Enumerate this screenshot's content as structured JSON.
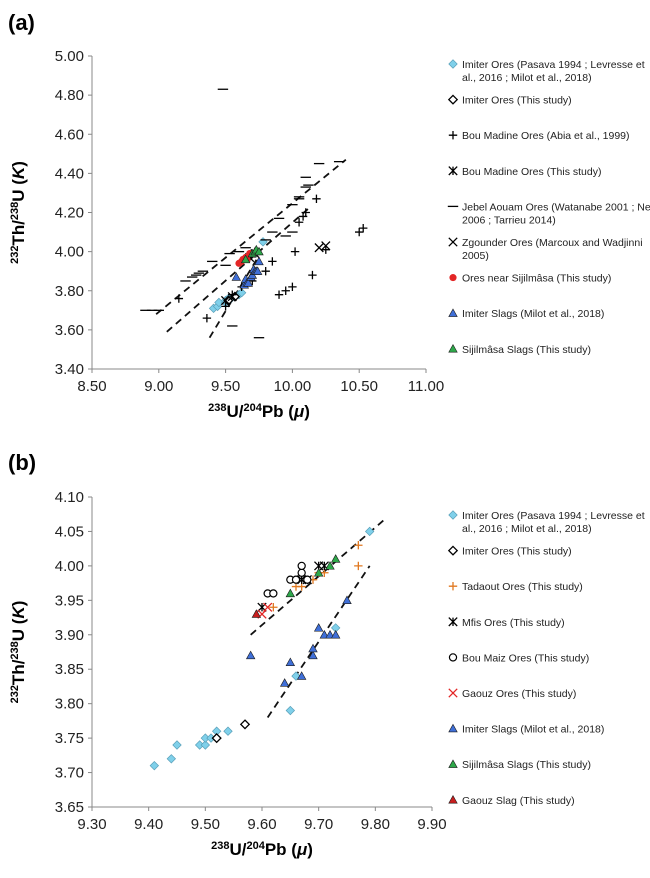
{
  "chart_data": [
    {
      "panel": "(a)",
      "type": "scatter",
      "title": "",
      "xlabel": {
        "sup1": "238",
        "mid": "U/",
        "sup2": "204",
        "main": "Pb (",
        "sym": "μ",
        "end": ")"
      },
      "ylabel": {
        "sup1": "232",
        "mid": "Th/",
        "sup2": "238",
        "main": "U (",
        "sym": "K",
        "end": ")"
      },
      "xlim": [
        8.5,
        11.0
      ],
      "ylim": [
        3.4,
        5.0
      ],
      "xticks": [
        "8.50",
        "9.00",
        "9.50",
        "10.00",
        "10.50",
        "11.00"
      ],
      "yticks": [
        "3.40",
        "3.60",
        "3.80",
        "4.00",
        "4.20",
        "4.40",
        "4.60",
        "4.80",
        "5.00"
      ],
      "grid": false,
      "legend_position": "right",
      "trend_lines": [
        {
          "x": [
            8.98,
            10.4
          ],
          "y": [
            3.68,
            4.47
          ]
        },
        {
          "x": [
            9.06,
            10.12
          ],
          "y": [
            3.59,
            4.22
          ]
        },
        {
          "x": [
            9.38,
            9.75
          ],
          "y": [
            3.56,
            3.98
          ]
        }
      ],
      "series": [
        {
          "name": "Imiter Ores (Pasava 1994 ; Levresse et al., 2016 ; Milot et al., 2018)",
          "marker": "diamond",
          "color": "#7fd0ea",
          "points": [
            [
              9.41,
              3.71
            ],
            [
              9.44,
              3.72
            ],
            [
              9.45,
              3.74
            ],
            [
              9.5,
              3.74
            ],
            [
              9.5,
              3.75
            ],
            [
              9.52,
              3.75
            ],
            [
              9.52,
              3.76
            ],
            [
              9.54,
              3.76
            ],
            [
              9.6,
              3.78
            ],
            [
              9.62,
              3.79
            ],
            [
              9.65,
              3.84
            ],
            [
              9.78,
              4.05
            ]
          ]
        },
        {
          "name": "Imiter Ores (This study)",
          "marker": "diamond-open",
          "color": "#000000",
          "points": [
            [
              9.52,
              3.75
            ],
            [
              9.57,
              3.77
            ]
          ]
        },
        {
          "name": "Bou Madine Ores (Abia et al., 1999)",
          "marker": "plus",
          "color": "#000000",
          "points": [
            [
              9.15,
              3.76
            ],
            [
              9.36,
              3.66
            ],
            [
              9.5,
              3.72
            ],
            [
              9.55,
              3.78
            ],
            [
              9.62,
              3.82
            ],
            [
              9.7,
              3.85
            ],
            [
              9.8,
              3.9
            ],
            [
              9.85,
              3.95
            ],
            [
              9.9,
              3.78
            ],
            [
              9.95,
              3.8
            ],
            [
              10.0,
              3.82
            ],
            [
              10.02,
              4.0
            ],
            [
              10.05,
              4.15
            ],
            [
              10.08,
              4.18
            ],
            [
              10.1,
              4.2
            ],
            [
              10.15,
              3.88
            ],
            [
              10.18,
              4.27
            ],
            [
              10.25,
              4.01
            ],
            [
              10.5,
              4.1
            ],
            [
              10.53,
              4.12
            ]
          ]
        },
        {
          "name": "Bou Madine Ores (This study)",
          "marker": "asterisk",
          "color": "#000000",
          "points": [
            [
              9.68,
              3.97
            ],
            [
              9.72,
              3.99
            ]
          ]
        },
        {
          "name": "Jebel Aouam Ores (Watanabe 2001 ; Nerci 2006 ; Tarrieu 2014)",
          "marker": "dash",
          "color": "#000000",
          "points": [
            [
              8.9,
              3.7
            ],
            [
              8.95,
              3.7
            ],
            [
              9.0,
              3.7
            ],
            [
              9.2,
              3.85
            ],
            [
              9.25,
              3.87
            ],
            [
              9.28,
              3.88
            ],
            [
              9.3,
              3.89
            ],
            [
              9.33,
              3.9
            ],
            [
              9.4,
              3.95
            ],
            [
              9.5,
              3.93
            ],
            [
              9.53,
              3.99
            ],
            [
              9.55,
              3.62
            ],
            [
              9.6,
              4.0
            ],
            [
              9.65,
              4.02
            ],
            [
              9.75,
              3.56
            ],
            [
              9.8,
              4.06
            ],
            [
              9.85,
              4.1
            ],
            [
              9.9,
              4.17
            ],
            [
              9.95,
              4.08
            ],
            [
              10.0,
              4.1
            ],
            [
              10.0,
              4.24
            ],
            [
              10.05,
              4.27
            ],
            [
              10.05,
              4.28
            ],
            [
              10.1,
              4.33
            ],
            [
              10.1,
              4.38
            ],
            [
              10.12,
              4.34
            ],
            [
              10.2,
              4.45
            ],
            [
              10.35,
              4.46
            ],
            [
              9.48,
              4.83
            ]
          ]
        },
        {
          "name": "Zgounder Ores (Marcoux and Wadjinni 2005)",
          "marker": "x",
          "color": "#000000",
          "points": [
            [
              9.5,
              3.75
            ],
            [
              9.55,
              3.77
            ],
            [
              10.2,
              4.02
            ],
            [
              10.25,
              4.03
            ]
          ]
        },
        {
          "name": "Ores near Sijilmâsa (This study)",
          "marker": "circle",
          "color": "#e32626",
          "points": [
            [
              9.6,
              3.94
            ],
            [
              9.62,
              3.95
            ],
            [
              9.63,
              3.96
            ],
            [
              9.65,
              3.97
            ],
            [
              9.66,
              3.96
            ],
            [
              9.68,
              3.99
            ]
          ]
        },
        {
          "name": "Imiter Slags (Milot et al., 2018)",
          "marker": "triangle",
          "color": "#3f6fd8",
          "points": [
            [
              9.58,
              3.87
            ],
            [
              9.64,
              3.83
            ],
            [
              9.65,
              3.86
            ],
            [
              9.66,
              3.84
            ],
            [
              9.67,
              3.84
            ],
            [
              9.69,
              3.87
            ],
            [
              9.7,
              3.88
            ],
            [
              9.71,
              3.91
            ],
            [
              9.72,
              3.9
            ],
            [
              9.73,
              3.9
            ],
            [
              9.74,
              3.9
            ],
            [
              9.75,
              3.95
            ]
          ]
        },
        {
          "name": "Sijilmâsa Slags (This study)",
          "marker": "triangle",
          "color": "#2ea84a",
          "points": [
            [
              9.65,
              3.96
            ],
            [
              9.7,
              3.99
            ],
            [
              9.72,
              4.0
            ],
            [
              9.73,
              4.01
            ],
            [
              9.75,
              4.0
            ]
          ]
        }
      ]
    },
    {
      "panel": "(b)",
      "type": "scatter",
      "title": "",
      "xlabel": {
        "sup1": "238",
        "mid": "U/",
        "sup2": "204",
        "main": "Pb (",
        "sym": "μ",
        "end": ")"
      },
      "ylabel": {
        "sup1": "232",
        "mid": "Th/",
        "sup2": "238",
        "main": "U (",
        "sym": "K",
        "end": ")"
      },
      "xlim": [
        9.3,
        9.9
      ],
      "ylim": [
        3.65,
        4.1
      ],
      "xticks": [
        "9.30",
        "9.40",
        "9.50",
        "9.60",
        "9.70",
        "9.80",
        "9.90"
      ],
      "yticks": [
        "3.65",
        "3.70",
        "3.75",
        "3.80",
        "3.85",
        "3.90",
        "3.95",
        "4.00",
        "4.05",
        "4.10"
      ],
      "grid": false,
      "legend_position": "right",
      "trend_lines": [
        {
          "x": [
            9.58,
            9.82
          ],
          "y": [
            3.9,
            4.07
          ]
        },
        {
          "x": [
            9.61,
            9.79
          ],
          "y": [
            3.78,
            4.0
          ]
        }
      ],
      "series": [
        {
          "name": "Imiter Ores (Pasava 1994 ; Levresse et al., 2016 ; Milot et al., 2018)",
          "marker": "diamond",
          "color": "#7fd0ea",
          "points": [
            [
              9.41,
              3.71
            ],
            [
              9.44,
              3.72
            ],
            [
              9.45,
              3.74
            ],
            [
              9.49,
              3.74
            ],
            [
              9.5,
              3.74
            ],
            [
              9.5,
              3.75
            ],
            [
              9.51,
              3.75
            ],
            [
              9.52,
              3.75
            ],
            [
              9.52,
              3.76
            ],
            [
              9.54,
              3.76
            ],
            [
              9.65,
              3.79
            ],
            [
              9.66,
              3.84
            ],
            [
              9.73,
              3.91
            ],
            [
              9.79,
              4.05
            ]
          ]
        },
        {
          "name": "Imiter Ores (This study)",
          "marker": "diamond-open",
          "color": "#000000",
          "points": [
            [
              9.52,
              3.75
            ],
            [
              9.57,
              3.77
            ]
          ]
        },
        {
          "name": "Tadaout Ores (This study)",
          "marker": "plus",
          "color": "#e07820",
          "points": [
            [
              9.62,
              3.94
            ],
            [
              9.66,
              3.97
            ],
            [
              9.67,
              3.97
            ],
            [
              9.69,
              3.98
            ],
            [
              9.7,
              3.99
            ],
            [
              9.71,
              3.99
            ],
            [
              9.77,
              4.0
            ],
            [
              9.77,
              4.03
            ]
          ]
        },
        {
          "name": "Mfis Ores (This study)",
          "marker": "asterisk",
          "color": "#000000",
          "points": [
            [
              9.6,
              3.94
            ],
            [
              9.67,
              3.98
            ],
            [
              9.68,
              3.98
            ],
            [
              9.7,
              4.0
            ],
            [
              9.71,
              4.0
            ]
          ]
        },
        {
          "name": "Bou Maiz Ores (This study)",
          "marker": "circle-open",
          "color": "#000000",
          "points": [
            [
              9.61,
              3.96
            ],
            [
              9.62,
              3.96
            ],
            [
              9.65,
              3.98
            ],
            [
              9.66,
              3.98
            ],
            [
              9.67,
              3.99
            ],
            [
              9.67,
              4.0
            ],
            [
              9.68,
              3.98
            ]
          ]
        },
        {
          "name": "Gaouz Ores (This study)",
          "marker": "x",
          "color": "#e32626",
          "points": [
            [
              9.6,
              3.93
            ],
            [
              9.61,
              3.94
            ]
          ]
        },
        {
          "name": "Imiter Slags (Milot et al., 2018)",
          "marker": "triangle",
          "color": "#3f6fd8",
          "points": [
            [
              9.58,
              3.87
            ],
            [
              9.64,
              3.83
            ],
            [
              9.65,
              3.86
            ],
            [
              9.67,
              3.84
            ],
            [
              9.69,
              3.87
            ],
            [
              9.69,
              3.88
            ],
            [
              9.7,
              3.91
            ],
            [
              9.71,
              3.9
            ],
            [
              9.72,
              3.9
            ],
            [
              9.73,
              3.9
            ],
            [
              9.75,
              3.95
            ]
          ]
        },
        {
          "name": "Sijilmâsa Slags (This study)",
          "marker": "triangle",
          "color": "#2ea84a",
          "points": [
            [
              9.65,
              3.96
            ],
            [
              9.7,
              3.99
            ],
            [
              9.72,
              4.0
            ],
            [
              9.73,
              4.01
            ]
          ]
        },
        {
          "name": "Gaouz Slag (This study)",
          "marker": "triangle",
          "color": "#c81e1e",
          "points": [
            [
              9.59,
              3.93
            ]
          ]
        }
      ]
    }
  ]
}
